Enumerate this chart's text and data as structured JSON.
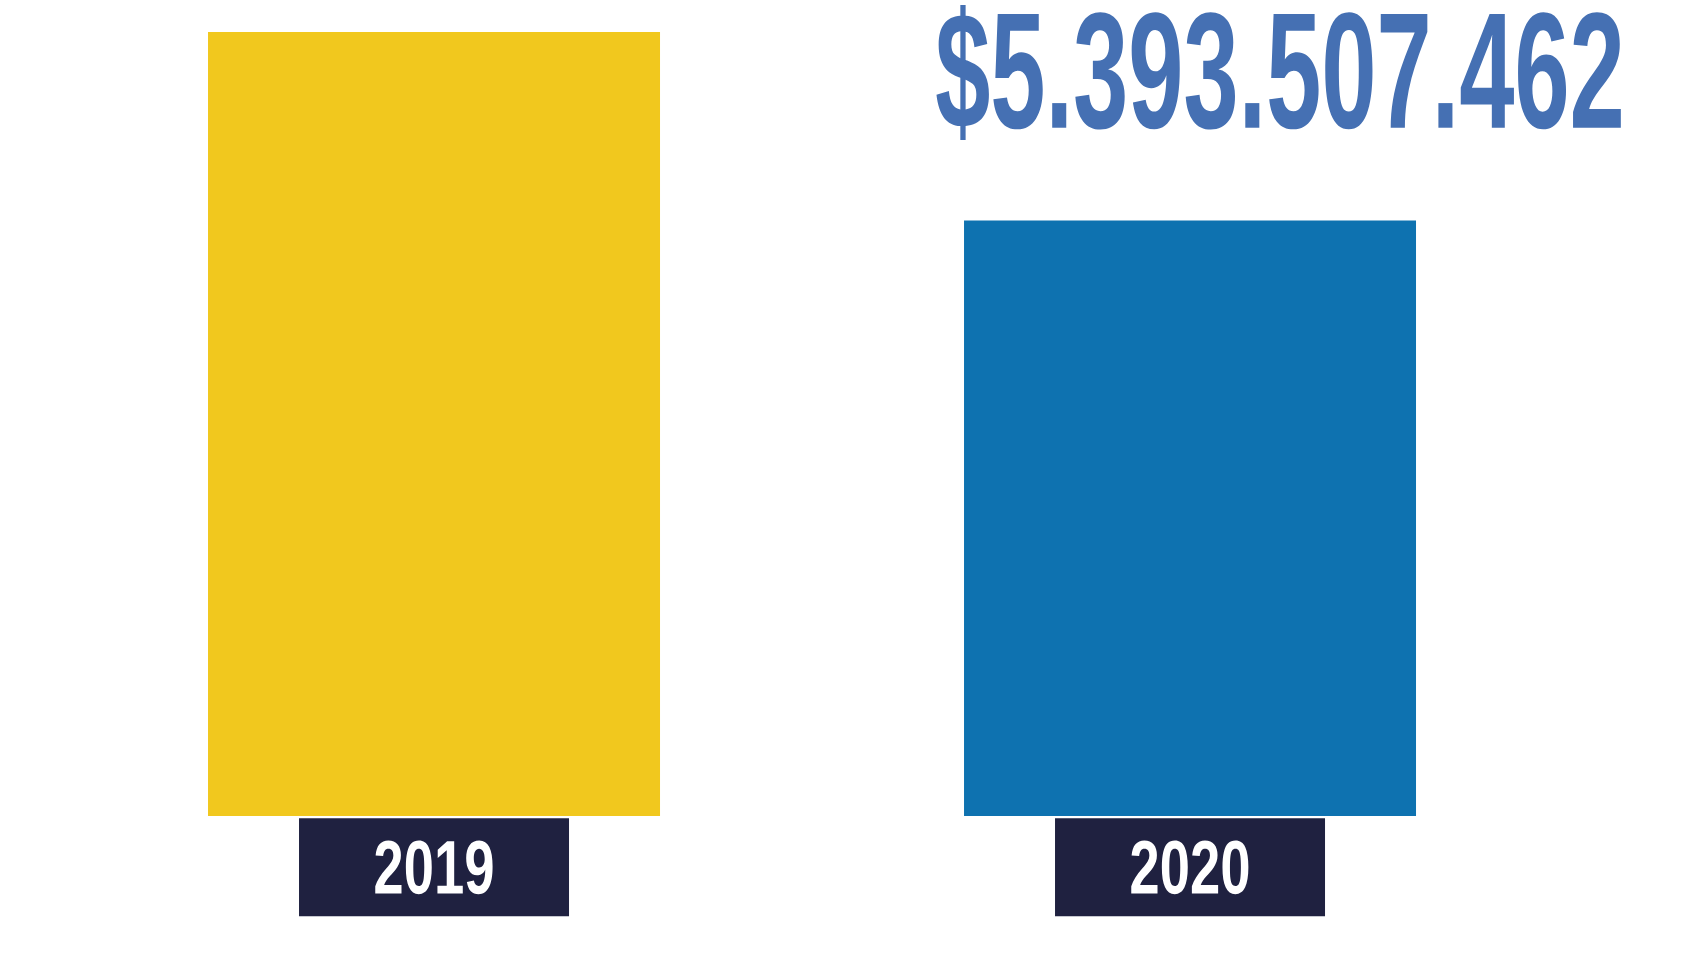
{
  "chart_data": {
    "type": "bar",
    "categories": [
      "2019",
      "2020"
    ],
    "values": [
      7100000000,
      5393507462
    ],
    "value_labels": [
      null,
      "$5.393.507.462"
    ],
    "colors": [
      "#f1c81e",
      "#0e72b0"
    ],
    "tick_labels": "x"
  }
}
